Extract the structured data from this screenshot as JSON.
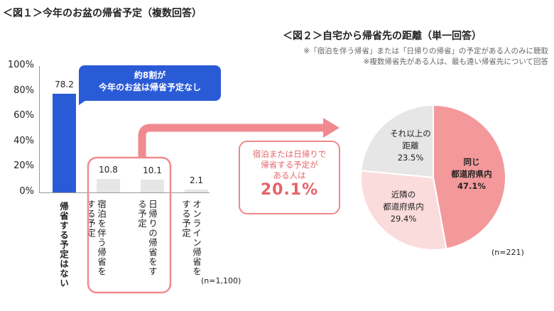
{
  "chart_data": [
    {
      "type": "bar",
      "title": "＜図１＞今年のお盆の帰省予定（複数回答）",
      "categories": [
        "帰省する予定はない",
        "宿泊を伴う帰省をする予定",
        "日帰りの帰省をする予定",
        "オンライン帰省をする予定"
      ],
      "values": [
        78.2,
        10.8,
        10.1,
        2.1
      ],
      "value_labels": [
        "78.2",
        "10.8",
        "10.1",
        "2.1"
      ],
      "colors": [
        "#2a5bd7",
        "#e6e6e6",
        "#e6e6e6",
        "#e6e6e6"
      ],
      "ylim": [
        0,
        100
      ],
      "yticks": [
        "100%",
        "80%",
        "60%",
        "40%",
        "20%",
        "0%"
      ],
      "n_label": "(n=1,100)",
      "bubble": [
        "約8割が",
        "今年のお盆は帰省予定なし"
      ],
      "callout": {
        "lines": [
          "宿泊または日帰りで",
          "帰省する予定が",
          "ある人は"
        ],
        "value": "20.1%"
      }
    },
    {
      "type": "pie",
      "title": "＜図２＞自宅から帰省先の距離（単一回答）",
      "notes": [
        "※「宿泊を伴う帰省」または「日帰りの帰省」の予定がある人のみに聴取",
        "※複数帰省先がある人は、最も遠い帰省先について回答"
      ],
      "slices": [
        {
          "label": [
            "同じ",
            "都道府県内"
          ],
          "value": 47.1,
          "value_label": "47.1%",
          "color": "#f4999b"
        },
        {
          "label": [
            "近隣の",
            "都道府県内"
          ],
          "value": 29.4,
          "value_label": "29.4%",
          "color": "#fbdcdc"
        },
        {
          "label": [
            "それ以上の",
            "距離"
          ],
          "value": 23.5,
          "value_label": "23.5%",
          "color": "#e6e6e6"
        }
      ],
      "n_label": "(n=221)"
    }
  ]
}
